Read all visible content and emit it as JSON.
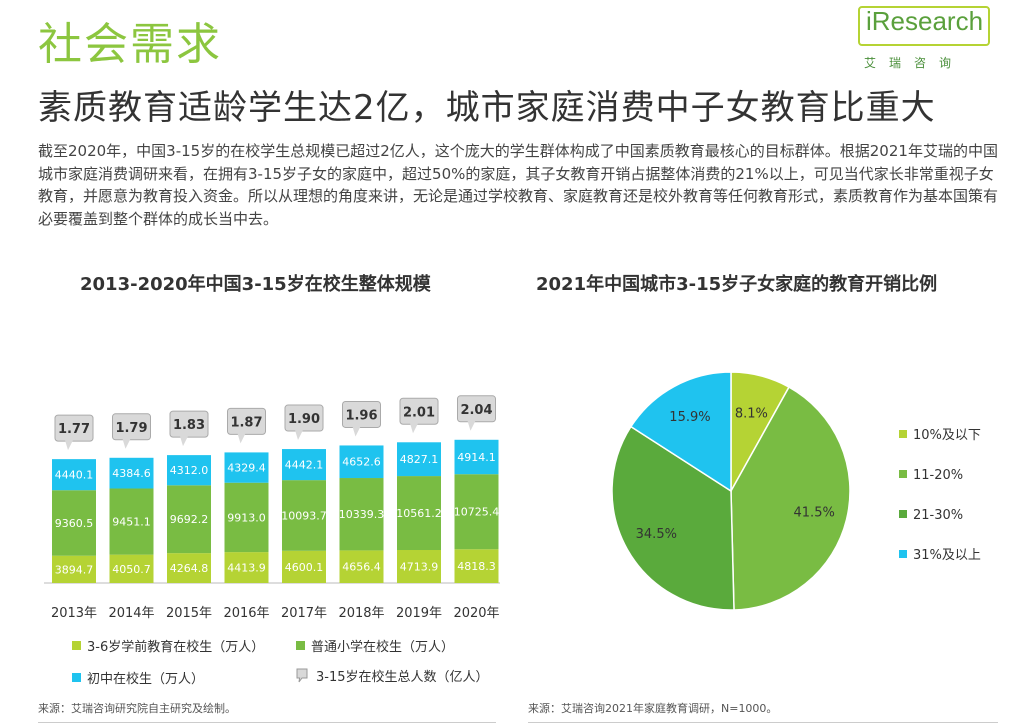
{
  "header": {
    "section_title": "社会需求",
    "headline": "素质教育适龄学生达2亿，城市家庭消费中子女教育比重大",
    "logo_word": "iResearch",
    "logo_sub": "艾瑞咨询"
  },
  "intro": "截至2020年，中国3-15岁的在校学生总规模已超过2亿人，这个庞大的学生群体构成了中国素质教育最核心的目标群体。根据2021年艾瑞的中国城市家庭消费调研来看，在拥有3-15岁子女的家庭中，超过50%的家庭，其子女教育开销占据整体消费的21%以上，可见当代家长非常重视子女教育，并愿意为教育投入资金。所以从理想的角度来讲，无论是通过学校教育、家庭教育还是校外教育等任何教育形式，素质教育作为基本国策有必要覆盖到整个群体的成长当中去。",
  "chart_data": [
    {
      "type": "bar",
      "stacked": true,
      "title": "2013-2020年中国3-15岁在校生整体规模",
      "categories": [
        "2013年",
        "2014年",
        "2015年",
        "2016年",
        "2017年",
        "2018年",
        "2019年",
        "2020年"
      ],
      "series": [
        {
          "name": "3-6岁学前教育在校生（万人）",
          "color": "#b5d334",
          "values": [
            3894.7,
            4050.7,
            4264.8,
            4413.9,
            4600.1,
            4656.4,
            4713.9,
            4818.3
          ]
        },
        {
          "name": "普通小学在校生（万人）",
          "color": "#79bc43",
          "values": [
            9360.5,
            9451.1,
            9692.2,
            9913.0,
            10093.7,
            10339.3,
            10561.2,
            10725.4
          ]
        },
        {
          "name": "初中在校生（万人）",
          "color": "#1fc3ef",
          "values": [
            4440.1,
            4384.6,
            4312.0,
            4329.4,
            4442.1,
            4652.6,
            4827.1,
            4914.1
          ]
        }
      ],
      "value_labels": [
        [
          "3894.7",
          "4050.7",
          "4264.8",
          "4413.9",
          "4600.1",
          "4656.4",
          "4713.9",
          "4818.3"
        ],
        [
          "9360.5",
          "9451.1",
          "9692.2",
          "9913.0",
          "10093.7",
          "10339.3",
          "10561.2",
          "10725.4"
        ],
        [
          "4440.1",
          "4384.6",
          "4312.0",
          "4329.4",
          "4442.1",
          "4652.6",
          "4827.1",
          "4914.1"
        ]
      ],
      "totals": {
        "name": "3-15岁在校生总人数（亿人）",
        "values": [
          1.77,
          1.79,
          1.83,
          1.87,
          1.9,
          1.96,
          2.01,
          2.04
        ],
        "labels": [
          "1.77",
          "1.79",
          "1.83",
          "1.87",
          "1.90",
          "1.96",
          "2.01",
          "2.04"
        ]
      },
      "legend": "bottom",
      "source": "来源：艾瑞咨询研究院自主研究及绘制。"
    },
    {
      "type": "pie",
      "title": "2021年中国城市3-15岁子女家庭的教育开销比例",
      "slices": [
        {
          "label": "10%及以下",
          "value": 8.1,
          "display": "8.1%",
          "color": "#b5d334"
        },
        {
          "label": "11-20%",
          "value": 41.5,
          "display": "41.5%",
          "color": "#79bc43"
        },
        {
          "label": "21-30%",
          "value": 34.5,
          "display": "34.5%",
          "color": "#5aaa3c"
        },
        {
          "label": "31%及以上",
          "value": 15.9,
          "display": "15.9%",
          "color": "#1fc3ef"
        }
      ],
      "legend": "right",
      "source": "来源：艾瑞咨询2021年家庭教育调研，N=1000。"
    }
  ]
}
